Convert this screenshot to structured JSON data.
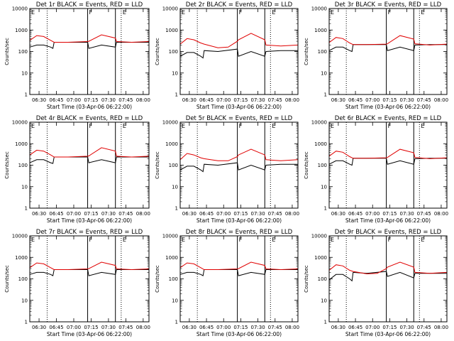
{
  "chart_data": [
    {
      "type": "line",
      "title": "Det 1r BLACK = Events, RED = LLD",
      "xlabel": "Start Time (03-Apr-06 06:22:00)",
      "ylabel": "Counts/sec",
      "yscale": "log",
      "ylim": [
        1,
        10000
      ],
      "x_ticks": [
        "06:30",
        "06:45",
        "07:00",
        "07:15",
        "07:30",
        "07:45",
        "08:00"
      ],
      "y_ticks": [
        "1",
        "10",
        "100",
        "1000",
        "10000"
      ],
      "annotations": [
        "E",
        "F",
        "E"
      ],
      "dotted_markers": [
        "06:37",
        "07:41"
      ],
      "solid_markers": [
        "07:12",
        "07:36"
      ],
      "series": [
        {
          "color": "#000000",
          "x": [
            "06:22",
            "06:28",
            "06:34",
            "06:40",
            "06:42",
            "06:43",
            "06:55",
            "07:12",
            "07:13",
            "07:24",
            "07:36",
            "07:37",
            "07:50",
            "08:05"
          ],
          "values": [
            160,
            200,
            200,
            160,
            140,
            270,
            270,
            270,
            140,
            200,
            160,
            270,
            270,
            270
          ]
        },
        {
          "color": "#e00000",
          "x": [
            "06:22",
            "06:28",
            "06:34",
            "06:40",
            "06:43",
            "06:55",
            "07:12",
            "07:13",
            "07:24",
            "07:36",
            "07:37",
            "07:50",
            "08:05"
          ],
          "values": [
            330,
            550,
            500,
            330,
            270,
            270,
            290,
            300,
            600,
            420,
            290,
            270,
            290
          ]
        }
      ]
    },
    {
      "type": "line",
      "title": "Det 2r BLACK = Events, RED = LLD",
      "xlabel": "Start Time (03-Apr-06 06:22:00)",
      "ylabel": "Counts/sec",
      "yscale": "log",
      "ylim": [
        1,
        10000
      ],
      "x_ticks": [
        "06:30",
        "06:45",
        "07:00",
        "07:15",
        "07:30",
        "07:45",
        "08:00"
      ],
      "y_ticks": [
        "1",
        "10",
        "100",
        "1000",
        "10000"
      ],
      "annotations": [
        "E",
        "F",
        "E"
      ],
      "dotted_markers": [
        "06:37",
        "07:41"
      ],
      "solid_markers": [
        "07:12",
        "07:36"
      ],
      "series": [
        {
          "color": "#000000",
          "x": [
            "06:22",
            "06:28",
            "06:34",
            "06:40",
            "06:42",
            "06:43",
            "06:55",
            "07:12",
            "07:13",
            "07:24",
            "07:36",
            "07:37",
            "07:50",
            "08:05"
          ],
          "values": [
            60,
            90,
            90,
            60,
            50,
            110,
            100,
            130,
            60,
            100,
            60,
            100,
            110,
            110
          ]
        },
        {
          "color": "#e00000",
          "x": [
            "06:22",
            "06:28",
            "06:34",
            "06:40",
            "06:43",
            "06:55",
            "07:04",
            "07:12",
            "07:13",
            "07:24",
            "07:36",
            "07:37",
            "07:50",
            "08:05"
          ],
          "values": [
            220,
            400,
            350,
            250,
            220,
            150,
            160,
            300,
            350,
            700,
            350,
            200,
            180,
            200
          ]
        }
      ]
    },
    {
      "type": "line",
      "title": "Det 3r BLACK = Events, RED = LLD",
      "xlabel": "Start Time (03-Apr-06 06:22:00)",
      "ylabel": "Counts/sec",
      "yscale": "log",
      "ylim": [
        1,
        10000
      ],
      "x_ticks": [
        "06:30",
        "06:45",
        "07:00",
        "07:15",
        "07:30",
        "07:45",
        "08:00"
      ],
      "y_ticks": [
        "1",
        "10",
        "100",
        "1000",
        "10000"
      ],
      "annotations": [
        "E",
        "F",
        "E"
      ],
      "dotted_markers": [
        "06:37",
        "07:41"
      ],
      "solid_markers": [
        "07:12",
        "07:36"
      ],
      "series": [
        {
          "color": "#000000",
          "x": [
            "06:22",
            "06:28",
            "06:34",
            "06:40",
            "06:42",
            "06:43",
            "06:55",
            "07:12",
            "07:13",
            "07:24",
            "07:36",
            "07:37",
            "07:50",
            "08:05"
          ],
          "values": [
            110,
            160,
            160,
            110,
            100,
            210,
            210,
            210,
            110,
            160,
            110,
            200,
            210,
            210
          ]
        },
        {
          "color": "#e00000",
          "x": [
            "06:22",
            "06:28",
            "06:34",
            "06:40",
            "06:43",
            "06:55",
            "07:12",
            "07:13",
            "07:24",
            "07:36",
            "07:37",
            "07:50",
            "08:05"
          ],
          "values": [
            260,
            450,
            400,
            250,
            210,
            210,
            220,
            230,
            550,
            380,
            230,
            200,
            220
          ]
        }
      ]
    },
    {
      "type": "line",
      "title": "Det 4r BLACK = Events, RED = LLD",
      "xlabel": "Start Time (03-Apr-06 06:22:00)",
      "ylabel": "Counts/sec",
      "yscale": "log",
      "ylim": [
        1,
        10000
      ],
      "x_ticks": [
        "06:30",
        "06:45",
        "07:00",
        "07:15",
        "07:30",
        "07:45",
        "08:00"
      ],
      "y_ticks": [
        "1",
        "10",
        "100",
        "1000",
        "10000"
      ],
      "annotations": [
        "E",
        "F",
        "E"
      ],
      "dotted_markers": [
        "06:37",
        "07:41"
      ],
      "solid_markers": [
        "07:12",
        "07:36"
      ],
      "series": [
        {
          "color": "#000000",
          "x": [
            "06:22",
            "06:28",
            "06:34",
            "06:40",
            "06:42",
            "06:43",
            "06:55",
            "07:12",
            "07:13",
            "07:24",
            "07:36",
            "07:37",
            "07:50",
            "08:05"
          ],
          "values": [
            130,
            180,
            180,
            130,
            120,
            240,
            240,
            240,
            130,
            180,
            130,
            240,
            240,
            240
          ]
        },
        {
          "color": "#e00000",
          "x": [
            "06:22",
            "06:28",
            "06:34",
            "06:40",
            "06:43",
            "06:55",
            "07:12",
            "07:13",
            "07:24",
            "07:36",
            "07:37",
            "07:50",
            "08:05"
          ],
          "values": [
            300,
            500,
            450,
            300,
            240,
            240,
            260,
            270,
            650,
            450,
            260,
            240,
            260
          ]
        }
      ]
    },
    {
      "type": "line",
      "title": "Det 5r BLACK = Events, RED = LLD",
      "xlabel": "Start Time (03-Apr-06 06:22:00)",
      "ylabel": "Counts/sec",
      "yscale": "log",
      "ylim": [
        1,
        10000
      ],
      "x_ticks": [
        "06:30",
        "06:45",
        "07:00",
        "07:15",
        "07:30",
        "07:45",
        "08:00"
      ],
      "y_ticks": [
        "1",
        "10",
        "100",
        "1000",
        "10000"
      ],
      "annotations": [
        "E",
        "F",
        "E"
      ],
      "dotted_markers": [
        "06:37",
        "07:41"
      ],
      "solid_markers": [
        "07:12",
        "07:36"
      ],
      "series": [
        {
          "color": "#000000",
          "x": [
            "06:22",
            "06:28",
            "06:34",
            "06:40",
            "06:42",
            "06:43",
            "06:55",
            "07:12",
            "07:13",
            "07:24",
            "07:36",
            "07:37",
            "07:50",
            "08:05"
          ],
          "values": [
            60,
            90,
            90,
            60,
            50,
            110,
            100,
            130,
            60,
            100,
            60,
            100,
            110,
            110
          ]
        },
        {
          "color": "#e00000",
          "x": [
            "06:22",
            "06:28",
            "06:34",
            "06:40",
            "06:43",
            "06:55",
            "07:04",
            "07:12",
            "07:13",
            "07:24",
            "07:36",
            "07:37",
            "07:50",
            "08:05"
          ],
          "values": [
            180,
            350,
            300,
            220,
            200,
            160,
            160,
            250,
            300,
            550,
            300,
            180,
            160,
            180
          ]
        }
      ]
    },
    {
      "type": "line",
      "title": "Det 6r BLACK = Events, RED = LLD",
      "xlabel": "Start Time (03-Apr-06 06:22:00)",
      "ylabel": "Counts/sec",
      "yscale": "log",
      "ylim": [
        1,
        10000
      ],
      "x_ticks": [
        "06:30",
        "06:45",
        "07:00",
        "07:15",
        "07:30",
        "07:45",
        "08:00"
      ],
      "y_ticks": [
        "1",
        "10",
        "100",
        "1000",
        "10000"
      ],
      "annotations": [
        "E",
        "F",
        "E"
      ],
      "dotted_markers": [
        "06:37",
        "07:41"
      ],
      "solid_markers": [
        "07:12",
        "07:36"
      ],
      "series": [
        {
          "color": "#000000",
          "x": [
            "06:22",
            "06:28",
            "06:34",
            "06:40",
            "06:42",
            "06:43",
            "06:55",
            "07:12",
            "07:13",
            "07:24",
            "07:36",
            "07:37",
            "07:50",
            "08:05"
          ],
          "values": [
            110,
            160,
            160,
            110,
            100,
            210,
            210,
            210,
            110,
            160,
            110,
            200,
            210,
            210
          ]
        },
        {
          "color": "#e00000",
          "x": [
            "06:22",
            "06:28",
            "06:34",
            "06:40",
            "06:43",
            "06:55",
            "07:12",
            "07:13",
            "07:24",
            "07:36",
            "07:37",
            "07:50",
            "08:05"
          ],
          "values": [
            260,
            450,
            400,
            250,
            210,
            210,
            220,
            230,
            550,
            380,
            230,
            200,
            220
          ]
        }
      ]
    },
    {
      "type": "line",
      "title": "Det 7r BLACK = Events, RED = LLD",
      "xlabel": "Start Time (03-Apr-06 06:22:00)",
      "ylabel": "Counts/sec",
      "yscale": "log",
      "ylim": [
        1,
        10000
      ],
      "x_ticks": [
        "06:30",
        "06:45",
        "07:00",
        "07:15",
        "07:30",
        "07:45",
        "08:00"
      ],
      "y_ticks": [
        "1",
        "10",
        "100",
        "1000",
        "10000"
      ],
      "annotations": [
        "E",
        "F",
        "E"
      ],
      "dotted_markers": [
        "06:37",
        "07:41"
      ],
      "solid_markers": [
        "07:12",
        "07:36"
      ],
      "series": [
        {
          "color": "#000000",
          "x": [
            "06:22",
            "06:28",
            "06:34",
            "06:40",
            "06:42",
            "06:43",
            "06:55",
            "07:12",
            "07:13",
            "07:24",
            "07:36",
            "07:37",
            "07:50",
            "08:05"
          ],
          "values": [
            160,
            200,
            200,
            160,
            140,
            270,
            270,
            270,
            140,
            200,
            160,
            270,
            270,
            270
          ]
        },
        {
          "color": "#e00000",
          "x": [
            "06:22",
            "06:28",
            "06:34",
            "06:40",
            "06:43",
            "06:55",
            "07:12",
            "07:13",
            "07:24",
            "07:36",
            "07:37",
            "07:50",
            "08:05"
          ],
          "values": [
            330,
            550,
            500,
            330,
            270,
            270,
            290,
            300,
            600,
            420,
            290,
            270,
            290
          ]
        }
      ]
    },
    {
      "type": "line",
      "title": "Det 8r BLACK = Events, RED = LLD",
      "xlabel": "Start Time (03-Apr-06 06:22:00)",
      "ylabel": "Counts/sec",
      "yscale": "log",
      "ylim": [
        1,
        10000
      ],
      "x_ticks": [
        "06:30",
        "06:45",
        "07:00",
        "07:15",
        "07:30",
        "07:45",
        "08:00"
      ],
      "y_ticks": [
        "1",
        "10",
        "100",
        "1000",
        "10000"
      ],
      "annotations": [
        "E",
        "F",
        "E"
      ],
      "dotted_markers": [
        "06:37",
        "07:41"
      ],
      "solid_markers": [
        "07:12",
        "07:36"
      ],
      "series": [
        {
          "color": "#000000",
          "x": [
            "06:22",
            "06:28",
            "06:34",
            "06:40",
            "06:42",
            "06:43",
            "06:55",
            "07:12",
            "07:13",
            "07:24",
            "07:36",
            "07:37",
            "07:50",
            "08:05"
          ],
          "values": [
            160,
            200,
            200,
            160,
            140,
            270,
            270,
            270,
            140,
            200,
            160,
            270,
            270,
            270
          ]
        },
        {
          "color": "#e00000",
          "x": [
            "06:22",
            "06:28",
            "06:34",
            "06:40",
            "06:43",
            "06:55",
            "07:12",
            "07:13",
            "07:24",
            "07:36",
            "07:37",
            "07:50",
            "08:05"
          ],
          "values": [
            330,
            550,
            500,
            330,
            270,
            270,
            290,
            300,
            600,
            420,
            290,
            270,
            290
          ]
        }
      ]
    },
    {
      "type": "line",
      "title": "Det 9r BLACK = Events, RED = LLD",
      "xlabel": "Start Time (03-Apr-06 06:22:00)",
      "ylabel": "Counts/sec",
      "yscale": "log",
      "ylim": [
        1,
        10000
      ],
      "x_ticks": [
        "06:30",
        "06:45",
        "07:00",
        "07:15",
        "07:30",
        "07:45",
        "08:00"
      ],
      "y_ticks": [
        "1",
        "10",
        "100",
        "1000",
        "10000"
      ],
      "annotations": [
        "E",
        "F",
        "E"
      ],
      "dotted_markers": [
        "06:37",
        "07:41"
      ],
      "solid_markers": [
        "07:12",
        "07:36"
      ],
      "series": [
        {
          "color": "#000000",
          "x": [
            "06:22",
            "06:28",
            "06:34",
            "06:40",
            "06:42",
            "06:43",
            "06:55",
            "07:12",
            "07:13",
            "07:24",
            "07:36",
            "07:37",
            "07:50",
            "08:05"
          ],
          "values": [
            90,
            160,
            160,
            100,
            80,
            200,
            180,
            220,
            130,
            200,
            110,
            180,
            180,
            180
          ]
        },
        {
          "color": "#e00000",
          "x": [
            "06:22",
            "06:28",
            "06:34",
            "06:40",
            "06:43",
            "06:55",
            "07:04",
            "07:12",
            "07:13",
            "07:24",
            "07:36",
            "07:37",
            "07:50",
            "08:05"
          ],
          "values": [
            250,
            450,
            400,
            250,
            220,
            170,
            180,
            300,
            350,
            600,
            350,
            200,
            180,
            200
          ]
        }
      ]
    }
  ]
}
